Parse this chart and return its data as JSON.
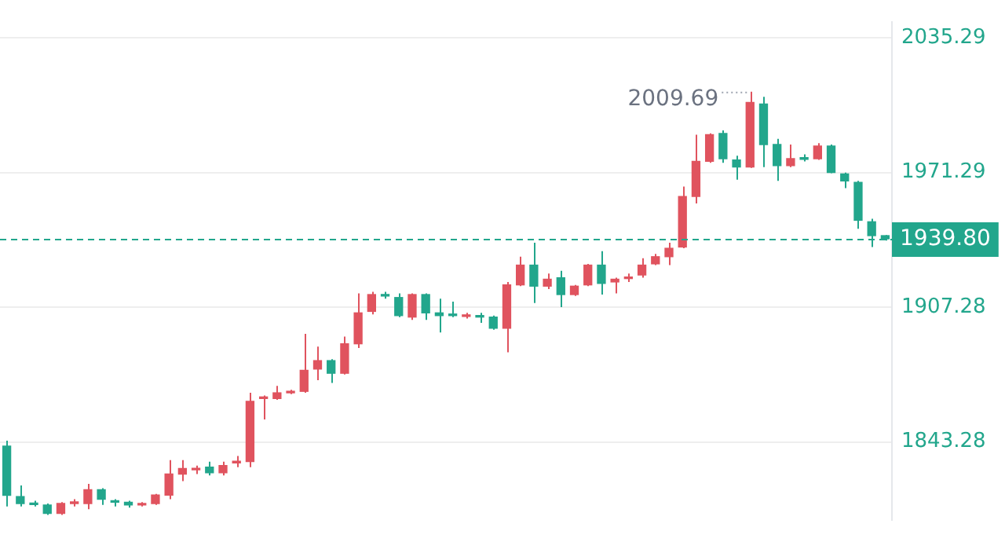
{
  "chart_data": {
    "type": "candlestick",
    "categories": [
      null,
      null,
      null,
      null,
      null,
      null,
      null,
      null,
      null,
      null,
      null,
      null,
      null,
      null,
      null,
      null,
      null,
      null,
      null,
      null,
      null,
      null,
      null,
      null,
      null,
      null,
      null,
      null,
      null,
      null,
      null,
      null,
      null,
      null,
      null,
      null,
      null,
      null,
      null,
      null,
      null,
      null,
      null,
      null,
      null,
      null,
      null,
      null,
      null,
      null,
      null,
      null,
      null,
      null,
      null,
      null,
      null,
      null,
      null,
      null,
      null,
      null,
      null,
      null,
      null,
      null
    ],
    "ohlc": [
      [
        1841.3,
        1843.9,
        1812.6,
        1817.9
      ],
      [
        1817.3,
        1822.6,
        1812.6,
        1814
      ],
      [
        1814,
        1815.3,
        1812.6,
        1813.5
      ],
      [
        1813.3,
        1814,
        1808.6,
        1809.3
      ],
      [
        1809.3,
        1814.6,
        1808.6,
        1814
      ],
      [
        1814,
        1816,
        1812.6,
        1814.6
      ],
      [
        1814,
        1823.3,
        1811.3,
        1820.6
      ],
      [
        1820.6,
        1821.3,
        1813.3,
        1816
      ],
      [
        1815.3,
        1816,
        1812.6,
        1814.6
      ],
      [
        1814.6,
        1815.3,
        1812,
        1813.3
      ],
      [
        1813.3,
        1814.6,
        1812.6,
        1814
      ],
      [
        1814,
        1818.6,
        1813.3,
        1818
      ],
      [
        1818,
        1834.6,
        1816,
        1828
      ],
      [
        1828,
        1834.6,
        1824.6,
        1830.6
      ],
      [
        1830,
        1832,
        1828,
        1830.6
      ],
      [
        1831.3,
        1833.9,
        1827.3,
        1828.6
      ],
      [
        1828.6,
        1833.9,
        1827.3,
        1832
      ],
      [
        1833.3,
        1836.6,
        1831.3,
        1833.9
      ],
      [
        1833.9,
        1866.6,
        1831.3,
        1862.6
      ],
      [
        1863.9,
        1865.3,
        1853.9,
        1864.6
      ],
      [
        1863.9,
        1869.9,
        1863.3,
        1866.6
      ],
      [
        1866.6,
        1868,
        1866,
        1867.3
      ],
      [
        1867.3,
        1894.6,
        1866.6,
        1877.3
      ],
      [
        1877.9,
        1888.6,
        1872.6,
        1881.9
      ],
      [
        1881.9,
        1882.6,
        1871.3,
        1875.9
      ],
      [
        1875.9,
        1893.3,
        1875.3,
        1889.9
      ],
      [
        1889.9,
        1913.9,
        1887.9,
        1904.6
      ],
      [
        1905.3,
        1914.6,
        1903.9,
        1913.3
      ],
      [
        1913.3,
        1914.6,
        1911.3,
        1912.6
      ],
      [
        1911.9,
        1913.9,
        1902.6,
        1903.3
      ],
      [
        1902.6,
        1913.9,
        1901.3,
        1913.3
      ],
      [
        1913.3,
        1913.9,
        1901.3,
        1904.6
      ],
      [
        1904.6,
        1911.3,
        1895.3,
        1903.3
      ],
      [
        1903.9,
        1909.9,
        1902.6,
        1903.3
      ],
      [
        1902.9,
        1904.6,
        1901.9,
        1903.3
      ],
      [
        1903.3,
        1904.6,
        1899.9,
        1902.6
      ],
      [
        1902.6,
        1903.3,
        1896.6,
        1897.3
      ],
      [
        1897.3,
        1919.3,
        1885.9,
        1917.9
      ],
      [
        1917.9,
        1931.3,
        1917.3,
        1927.3
      ],
      [
        1927.3,
        1937.9,
        1909.3,
        1917.3
      ],
      [
        1917.3,
        1923.3,
        1915.9,
        1920.6
      ],
      [
        1921.3,
        1924.6,
        1907.3,
        1913.3
      ],
      [
        1913.3,
        1917.9,
        1912.6,
        1917.3
      ],
      [
        1917.9,
        1927.9,
        1917.3,
        1927.3
      ],
      [
        1927.3,
        1933.9,
        1913.3,
        1918.6
      ],
      [
        1919.3,
        1921.3,
        1913.9,
        1920.6
      ],
      [
        1920.9,
        1923.3,
        1919.3,
        1921.3
      ],
      [
        1922.6,
        1930.6,
        1921.3,
        1927.3
      ],
      [
        1927.9,
        1932.6,
        1927.3,
        1931.3
      ],
      [
        1931.3,
        1937.9,
        1927.3,
        1935.3
      ],
      [
        1935.9,
        1964.6,
        1935.3,
        1959.9
      ],
      [
        1959.9,
        1989.3,
        1956.6,
        1976.6
      ],
      [
        1976.6,
        1989.9,
        1975.9,
        1989.3
      ],
      [
        1989.9,
        1991.3,
        1975.9,
        1977.9
      ],
      [
        1977.3,
        1979.3,
        1967.9,
        1973.9
      ],
      [
        1973.9,
        2009.69,
        1973.5,
        2004.6
      ],
      [
        2003.9,
        2007.3,
        1973.9,
        1984.6
      ],
      [
        1984.6,
        1987.3,
        1967.3,
        1974.6
      ],
      [
        1974.6,
        1984.6,
        1973.9,
        1977.9
      ],
      [
        1977.9,
        1979.9,
        1976.6,
        1977.6
      ],
      [
        1977.9,
        1985.3,
        1977.3,
        1983.9
      ],
      [
        1983.9,
        1984.6,
        1971,
        1971.3
      ],
      [
        1970.6,
        1971.3,
        1963.9,
        1967.3
      ],
      [
        1966.6,
        1967.3,
        1944.6,
        1948.6
      ],
      [
        1947.9,
        1949.3,
        1935.9,
        1941.3
      ],
      [
        1941.3,
        1941.6,
        1939,
        1939.8
      ]
    ],
    "colors": [
      "#22a68c",
      "#22a68c",
      "#22a68c",
      "#22a68c",
      "#e0535e",
      "#e0535e",
      "#e0535e",
      "#22a68c",
      "#22a68c",
      "#22a68c",
      "#e0535e",
      "#e0535e",
      "#e0535e",
      "#e0535e",
      "#e0535e",
      "#22a68c",
      "#e0535e",
      "#e0535e",
      "#e0535e",
      "#e0535e",
      "#e0535e",
      "#e0535e",
      "#e0535e",
      "#e0535e",
      "#22a68c",
      "#e0535e",
      "#e0535e",
      "#e0535e",
      "#22a68c",
      "#22a68c",
      "#e0535e",
      "#22a68c",
      "#22a68c",
      "#22a68c",
      "#e0535e",
      "#22a68c",
      "#22a68c",
      "#e0535e",
      "#e0535e",
      "#22a68c",
      "#e0535e",
      "#22a68c",
      "#e0535e",
      "#e0535e",
      "#22a68c",
      "#e0535e",
      "#e0535e",
      "#e0535e",
      "#e0535e",
      "#e0535e",
      "#e0535e",
      "#e0535e",
      "#e0535e",
      "#22a68c",
      "#22a68c",
      "#e0535e",
      "#22a68c",
      "#22a68c",
      "#e0535e",
      "#22a68c",
      "#e0535e",
      "#22a68c",
      "#22a68c",
      "#22a68c",
      "#22a68c",
      "#22a68c"
    ],
    "ylim": [
      1806,
      2043
    ],
    "yticks": [
      1843.28,
      1907.28,
      1971.29,
      2035.29
    ],
    "grid": "y",
    "tick_labels": "y",
    "ref_lines": [
      {
        "axis": "y",
        "value": 1939.8,
        "label": "1939.80",
        "color": "#22a68c",
        "line_style": "dashed"
      }
    ],
    "annotations": [
      "2009.69"
    ]
  }
}
